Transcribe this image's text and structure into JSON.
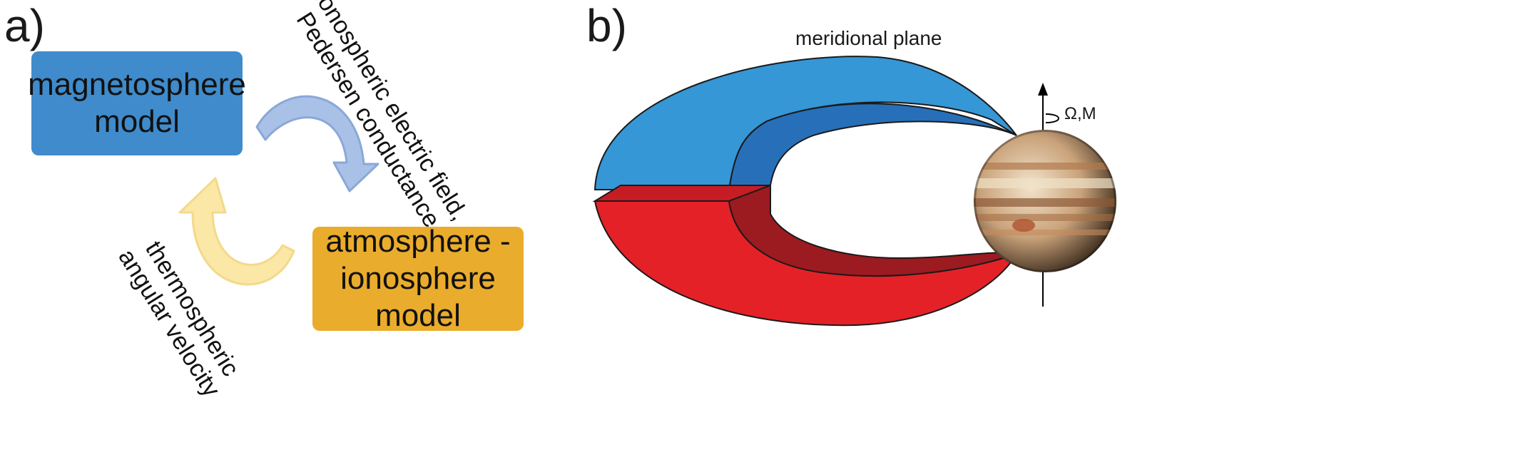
{
  "panel_a": {
    "label": "a)",
    "box_magnetosphere": "magnetosphere\nmodel",
    "box_atmosphere": "atmosphere -\nionosphere\nmodel",
    "arrow_top_text": "ionospheric electric field,\nPedersen conductance",
    "arrow_bottom_text": "thermospheric\nangular velocity",
    "colors": {
      "magnetosphere_box": "#3f8bcb",
      "atmosphere_box": "#eaac2c",
      "arrow_blue": "#a9c1e6",
      "arrow_yellow": "#fbe7a6"
    }
  },
  "panel_b": {
    "label": "b)",
    "plane_label": "meridional plane",
    "axis_label": "Ω,M",
    "colors": {
      "northern_lobe": "#3597d6",
      "northern_inner": "#2770b9",
      "southern_lobe": "#e52128",
      "southern_inner": "#9b1b20",
      "planet": "#c9a27a"
    }
  }
}
